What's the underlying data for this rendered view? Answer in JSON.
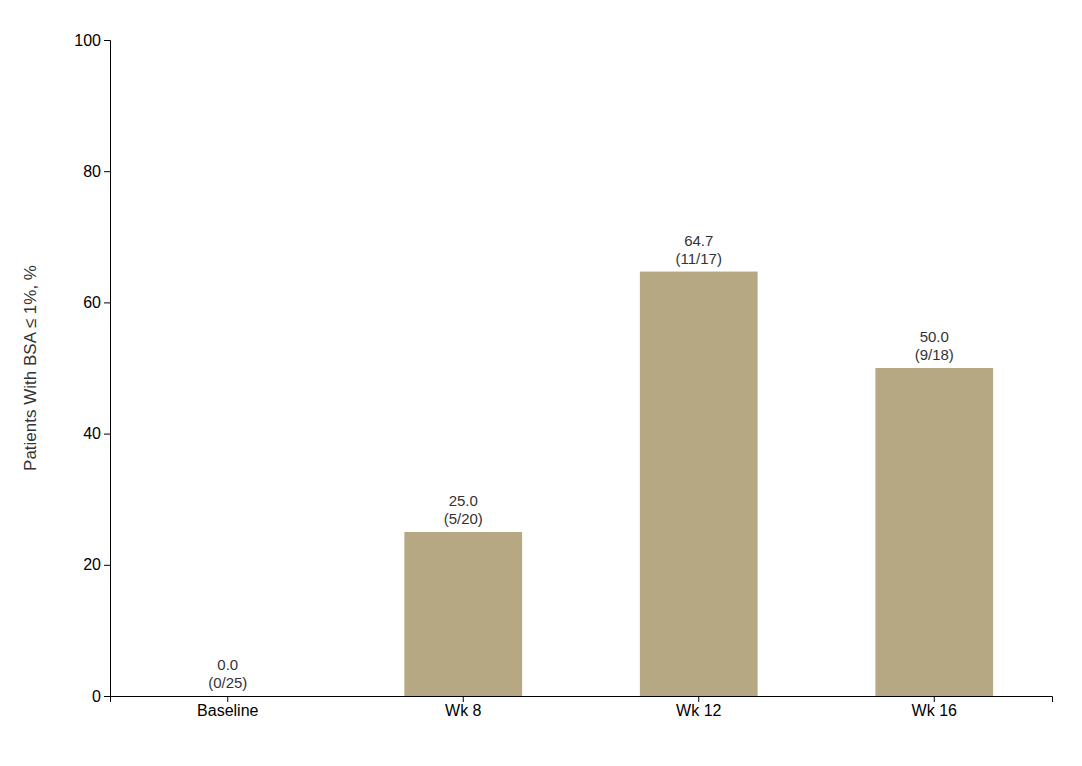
{
  "chart_data": {
    "type": "bar",
    "categories": [
      "Baseline",
      "Wk 8",
      "Wk 12",
      "Wk 16"
    ],
    "values": [
      0.0,
      25.0,
      64.7,
      50.0
    ],
    "data_labels": true,
    "value_labels": [
      "0.0\n(0/25)",
      "25.0\n(5/20)",
      "64.7\n(11/17)",
      "50.0\n(9/18)"
    ],
    "color": "#b5a882",
    "ylabel": "Patients With BSA ≤ 1%, %",
    "ylim": [
      0,
      100
    ],
    "yticks": [
      0,
      20,
      40,
      60,
      80,
      100
    ],
    "grid": false
  }
}
